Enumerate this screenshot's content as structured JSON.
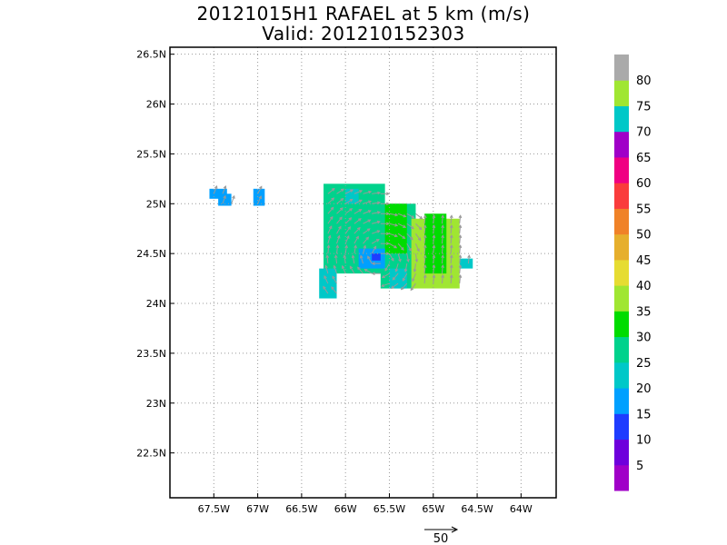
{
  "chart_data": {
    "type": "heatmap",
    "title": "20121015H1 RAFAEL at 5 km (m/s)",
    "subtitle": "Valid: 201210152303",
    "xlim": [
      -68.0,
      -63.6
    ],
    "ylim": [
      22.05,
      26.57
    ],
    "x_ticks": [
      {
        "value": -67.5,
        "label": "67.5W"
      },
      {
        "value": -67.0,
        "label": "67W"
      },
      {
        "value": -66.5,
        "label": "66.5W"
      },
      {
        "value": -66.0,
        "label": "66W"
      },
      {
        "value": -65.5,
        "label": "65.5W"
      },
      {
        "value": -65.0,
        "label": "65W"
      },
      {
        "value": -64.5,
        "label": "64.5W"
      },
      {
        "value": -64.0,
        "label": "64W"
      }
    ],
    "y_ticks": [
      {
        "value": 22.5,
        "label": "22.5N"
      },
      {
        "value": 23.0,
        "label": "23N"
      },
      {
        "value": 23.5,
        "label": "23.5N"
      },
      {
        "value": 24.0,
        "label": "24N"
      },
      {
        "value": 24.5,
        "label": "24.5N"
      },
      {
        "value": 25.0,
        "label": "25N"
      },
      {
        "value": 25.5,
        "label": "25.5N"
      },
      {
        "value": 26.0,
        "label": "26N"
      },
      {
        "value": 26.5,
        "label": "26.5N"
      }
    ],
    "grid": true,
    "colorbar": {
      "placement": "right",
      "labels": [
        "5",
        "10",
        "15",
        "20",
        "25",
        "30",
        "35",
        "40",
        "45",
        "50",
        "55",
        "60",
        "65",
        "70",
        "75",
        "80"
      ],
      "colors": [
        "#a000c8",
        "#6e00dc",
        "#1e3cff",
        "#00a0ff",
        "#00c8c8",
        "#00d28c",
        "#00dc00",
        "#a0e632",
        "#e6dc32",
        "#e6af2d",
        "#f08228",
        "#fa3c3c",
        "#f00082",
        "#a000c8",
        "#00c8c8",
        "#a0e632",
        "#aaaaaa"
      ]
    },
    "wind_speed_cells": [
      {
        "lon_range": [
          -67.55,
          -67.35
        ],
        "lat_range": [
          25.05,
          25.15
        ],
        "speed": 15
      },
      {
        "lon_range": [
          -67.45,
          -67.3
        ],
        "lat_range": [
          24.98,
          25.1
        ],
        "speed": 15
      },
      {
        "lon_range": [
          -67.05,
          -66.92
        ],
        "lat_range": [
          24.98,
          25.15
        ],
        "speed": 15
      },
      {
        "lon_range": [
          -66.25,
          -65.55
        ],
        "lat_range": [
          24.3,
          25.2
        ],
        "speed": 25
      },
      {
        "lon_range": [
          -65.6,
          -65.2
        ],
        "lat_range": [
          24.15,
          25.0
        ],
        "speed": 25
      },
      {
        "lon_range": [
          -65.55,
          -65.3
        ],
        "lat_range": [
          24.5,
          25.0
        ],
        "speed": 30
      },
      {
        "lon_range": [
          -65.25,
          -64.7
        ],
        "lat_range": [
          24.15,
          24.85
        ],
        "speed": 35
      },
      {
        "lon_range": [
          -65.1,
          -64.85
        ],
        "lat_range": [
          24.3,
          24.9
        ],
        "speed": 30
      },
      {
        "lon_range": [
          -64.7,
          -64.55
        ],
        "lat_range": [
          24.35,
          24.45
        ],
        "speed": 20
      },
      {
        "lon_range": [
          -66.3,
          -66.1
        ],
        "lat_range": [
          24.05,
          24.35
        ],
        "speed": 20
      },
      {
        "lon_range": [
          -65.85,
          -65.55
        ],
        "lat_range": [
          24.35,
          24.55
        ],
        "speed": 15
      },
      {
        "lon_range": [
          -65.7,
          -65.6
        ],
        "lat_range": [
          24.43,
          24.5
        ],
        "speed": 10
      },
      {
        "lon_range": [
          -65.5,
          -65.3
        ],
        "lat_range": [
          24.15,
          24.35
        ],
        "speed": 20
      },
      {
        "lon_range": [
          -66.0,
          -65.85
        ],
        "lat_range": [
          25.0,
          25.15
        ],
        "speed": 20
      }
    ],
    "reference_vector": {
      "label": "50",
      "value_ms": 50
    }
  }
}
